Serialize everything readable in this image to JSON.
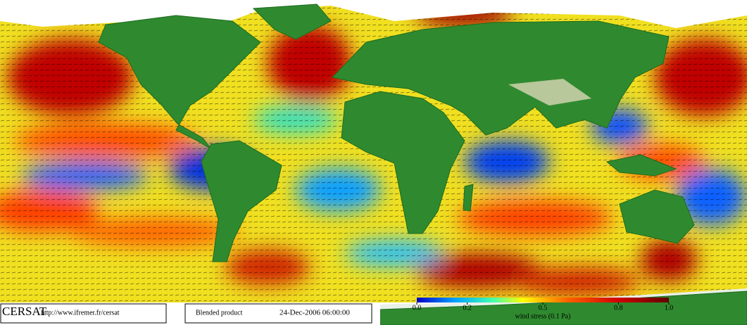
{
  "logo": "CERSAT",
  "url": "http://www.ifremer.fr/cersat",
  "product": "Blended product",
  "datetime": "24-Dec-2006 06:00:00",
  "colorbar": {
    "label": "wind stress (0.1 Pa)",
    "lim": [
      0,
      1
    ],
    "ticks": [
      {
        "value": 0,
        "label": "0.0"
      },
      {
        "value": 0.2,
        "label": "0.2"
      },
      {
        "value": 0.5,
        "label": "0.5"
      },
      {
        "value": 0.8,
        "label": "0.8"
      },
      {
        "value": 1,
        "label": "1.0"
      }
    ]
  }
}
